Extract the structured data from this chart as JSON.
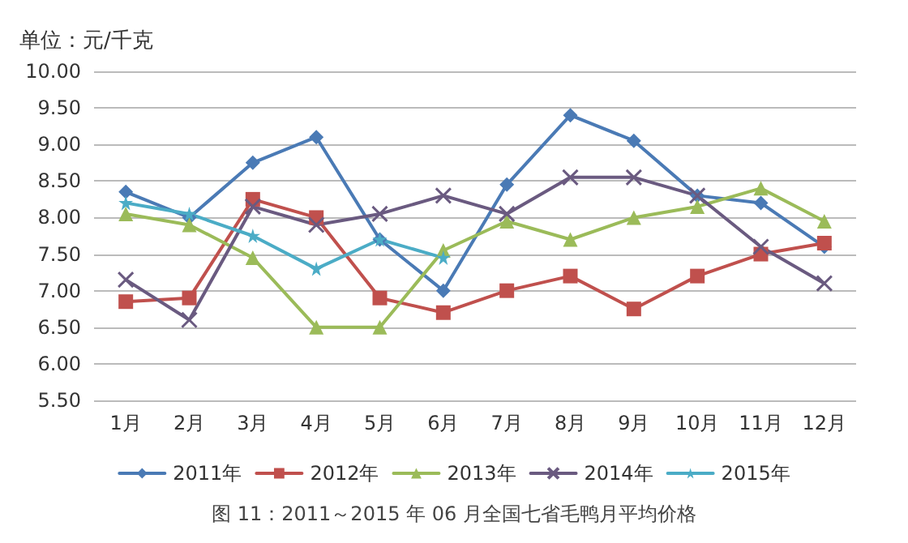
{
  "chart_data": {
    "type": "line",
    "ylabel": "单位：元/千克",
    "annotations": [
      "图 11：2011～2015 年 06 月全国七省毛鸭月平均价格"
    ],
    "categories": [
      "1月",
      "2月",
      "3月",
      "4月",
      "5月",
      "6月",
      "7月",
      "8月",
      "9月",
      "10月",
      "11月",
      "12月"
    ],
    "series": [
      {
        "name": "2011年",
        "color": "#4a7ab5",
        "marker": "diamond",
        "values": [
          8.35,
          8.0,
          8.75,
          9.1,
          7.7,
          7.0,
          8.45,
          9.4,
          9.05,
          8.3,
          8.2,
          7.6
        ]
      },
      {
        "name": "2012年",
        "color": "#c0504d",
        "marker": "square",
        "values": [
          6.85,
          6.9,
          8.25,
          8.0,
          6.9,
          6.7,
          7.0,
          7.2,
          6.75,
          7.2,
          7.5,
          7.65
        ]
      },
      {
        "name": "2013年",
        "color": "#9bbb59",
        "marker": "triangle",
        "values": [
          8.05,
          7.9,
          7.45,
          6.5,
          6.5,
          7.55,
          7.95,
          7.7,
          8.0,
          8.15,
          8.4,
          7.95
        ]
      },
      {
        "name": "2014年",
        "color": "#6a5a80",
        "marker": "cross",
        "values": [
          7.15,
          6.6,
          8.15,
          7.9,
          8.05,
          8.3,
          8.05,
          8.55,
          8.55,
          8.3,
          7.6,
          7.1
        ]
      },
      {
        "name": "2015年",
        "color": "#4bacc6",
        "marker": "star",
        "values": [
          8.2,
          8.05,
          7.75,
          7.3,
          7.7,
          7.45,
          null,
          null,
          null,
          null,
          null,
          null
        ]
      }
    ],
    "ylim": [
      5.5,
      10
    ],
    "yticks": [
      {
        "value": 5.5,
        "label": "5.50"
      },
      {
        "value": 6,
        "label": "6.00"
      },
      {
        "value": 6.5,
        "label": "6.50"
      },
      {
        "value": 7,
        "label": "7.00"
      },
      {
        "value": 7.5,
        "label": "7.50"
      },
      {
        "value": 8,
        "label": "8.00"
      },
      {
        "value": 8.5,
        "label": "8.50"
      },
      {
        "value": 9,
        "label": "9.00"
      },
      {
        "value": 9.5,
        "label": "9.50"
      },
      {
        "value": 10,
        "label": "10.00"
      }
    ],
    "grid": "y",
    "legend": "bottom",
    "line_style": "solid"
  }
}
